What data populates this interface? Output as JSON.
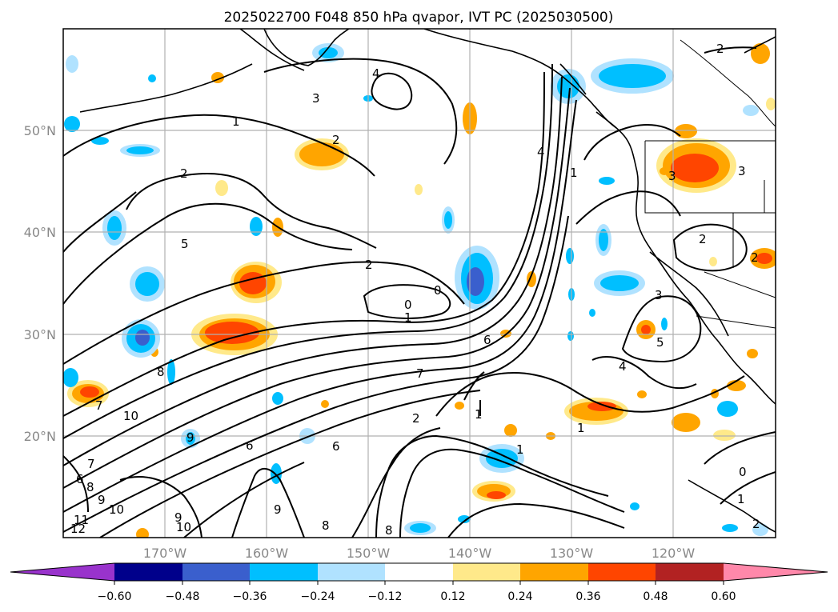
{
  "map": {
    "title": "2025022700 F048 850 hPa qvapor, IVT PC (2025030500)",
    "lon_labels": [
      "170°W",
      "160°W",
      "150°W",
      "140°W",
      "130°W",
      "120°W"
    ],
    "lat_labels": [
      "50°N",
      "40°N",
      "30°N",
      "20°N"
    ],
    "contour_labels": [
      {
        "text": "4"
      },
      {
        "text": "3"
      },
      {
        "text": "1"
      },
      {
        "text": "2"
      },
      {
        "text": "2"
      },
      {
        "text": "5"
      },
      {
        "text": "2"
      },
      {
        "text": "0"
      },
      {
        "text": "0"
      },
      {
        "text": "1"
      },
      {
        "text": "6"
      },
      {
        "text": "8"
      },
      {
        "text": "7"
      },
      {
        "text": "10"
      },
      {
        "text": "9"
      },
      {
        "text": "6"
      },
      {
        "text": "6"
      },
      {
        "text": "7"
      },
      {
        "text": "6"
      },
      {
        "text": "8"
      },
      {
        "text": "9"
      },
      {
        "text": "10"
      },
      {
        "text": "11"
      },
      {
        "text": "12"
      },
      {
        "text": "9"
      },
      {
        "text": "10"
      },
      {
        "text": "9"
      },
      {
        "text": "8"
      },
      {
        "text": "8"
      },
      {
        "text": "7"
      },
      {
        "text": "2"
      },
      {
        "text": "1"
      },
      {
        "text": "1"
      },
      {
        "text": "1"
      },
      {
        "text": "4"
      },
      {
        "text": "1"
      },
      {
        "text": "2"
      },
      {
        "text": "3"
      },
      {
        "text": "3"
      },
      {
        "text": "2"
      },
      {
        "text": "2"
      },
      {
        "text": "3"
      },
      {
        "text": "5"
      },
      {
        "text": "4"
      },
      {
        "text": "0"
      },
      {
        "text": "1"
      },
      {
        "text": "2"
      }
    ]
  },
  "colorbar": {
    "tick_labels": [
      "−0.60",
      "−0.48",
      "−0.36",
      "−0.24",
      "−0.12",
      "0.12",
      "0.24",
      "0.36",
      "0.48",
      "0.60"
    ],
    "colors": [
      "#9933cc",
      "#00008b",
      "#3a5fcd",
      "#00bfff",
      "#b0e2ff",
      "#ffffff",
      "#ffe98a",
      "#ffa500",
      "#ff4500",
      "#b22222",
      "#ff88aa"
    ]
  }
}
